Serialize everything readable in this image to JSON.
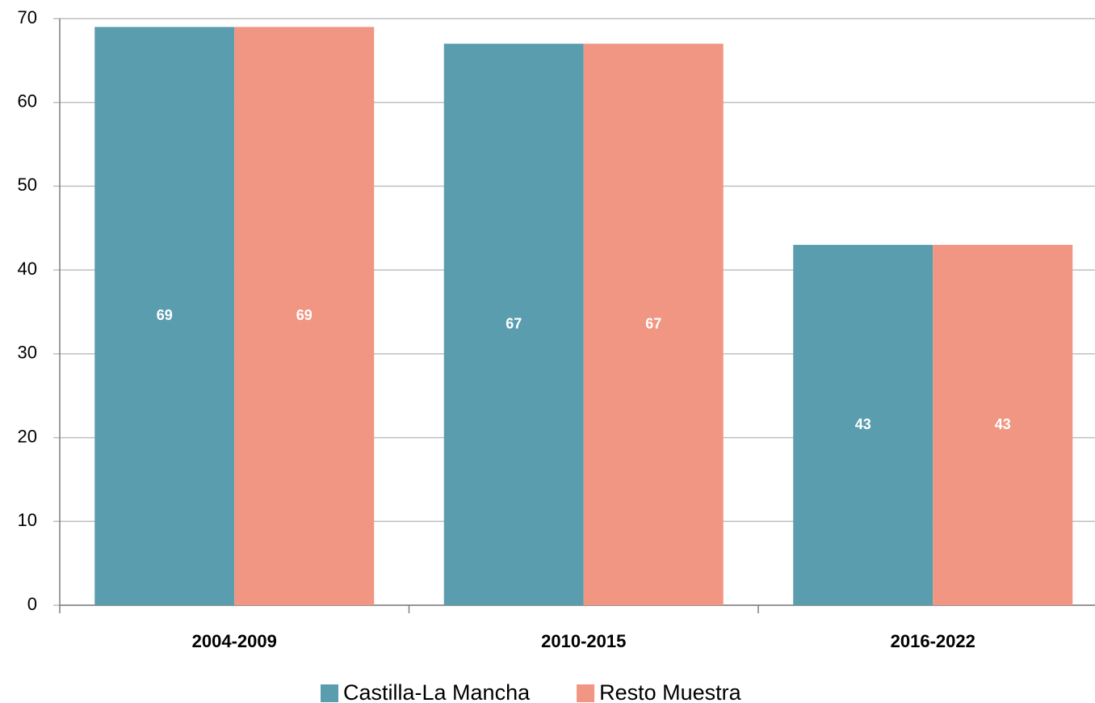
{
  "chart_data": {
    "type": "bar",
    "categories": [
      "2004-2009",
      "2010-2015",
      "2016-2022"
    ],
    "series": [
      {
        "name": "Castilla-La Mancha",
        "color": "#5a9dae",
        "values": [
          69,
          67,
          43
        ]
      },
      {
        "name": "Resto Muestra",
        "color": "#f19682",
        "values": [
          69,
          67,
          43
        ]
      }
    ],
    "ylim": [
      0,
      70
    ],
    "yticks": [
      0,
      10,
      20,
      30,
      40,
      50,
      60,
      70
    ],
    "grid": true,
    "legend": "bottom"
  }
}
